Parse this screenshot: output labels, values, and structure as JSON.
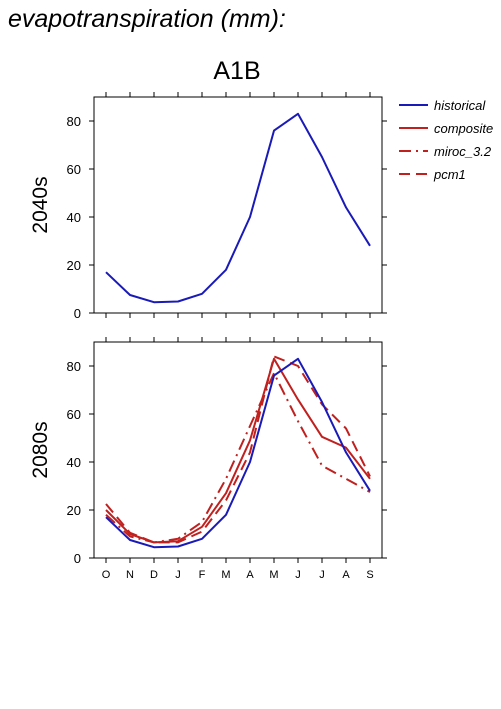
{
  "title": "evapotranspiration (mm):",
  "scenario": "A1B",
  "colors": {
    "historical": "#1a1ab8",
    "model": "#c0201e"
  },
  "legend": [
    {
      "name": "historical",
      "color": "#1a1ab8",
      "dash": "solid"
    },
    {
      "name": "composite",
      "color": "#c0201e",
      "dash": "solid"
    },
    {
      "name": "miroc_3.2",
      "color": "#c0201e",
      "dash": "dashdot"
    },
    {
      "name": "pcm1",
      "color": "#c0201e",
      "dash": "dashed"
    }
  ],
  "chart_data": [
    {
      "type": "line",
      "row_label": "2040s",
      "categories": [
        "O",
        "N",
        "D",
        "J",
        "F",
        "M",
        "A",
        "M",
        "J",
        "J",
        "A",
        "S"
      ],
      "ylim": [
        0,
        90
      ],
      "yticks": [
        0,
        20,
        40,
        60,
        80
      ],
      "show_x_labels": false,
      "series": [
        {
          "name": "historical",
          "values": [
            17,
            7.5,
            4.5,
            4.8,
            8,
            18,
            40,
            76,
            83,
            65,
            44,
            28
          ]
        }
      ]
    },
    {
      "type": "line",
      "row_label": "2080s",
      "categories": [
        "O",
        "N",
        "D",
        "J",
        "F",
        "M",
        "A",
        "M",
        "J",
        "J",
        "A",
        "S"
      ],
      "ylim": [
        0,
        90
      ],
      "yticks": [
        0,
        20,
        40,
        60,
        80
      ],
      "show_x_labels": true,
      "series": [
        {
          "name": "historical",
          "values": [
            17,
            7.5,
            4.5,
            4.8,
            8,
            18,
            40,
            76,
            83,
            65,
            44,
            28
          ]
        },
        {
          "name": "composite",
          "values": [
            20,
            10,
            6.5,
            7,
            13,
            27,
            49,
            83,
            66,
            50.5,
            46,
            33
          ]
        },
        {
          "name": "miroc_3.2",
          "values": [
            18,
            9,
            6.5,
            8,
            15,
            33,
            55,
            77,
            57,
            38.5,
            33,
            27.5
          ]
        },
        {
          "name": "pcm1",
          "values": [
            22.5,
            10.5,
            6.5,
            6.5,
            11,
            24,
            44,
            84,
            80,
            64,
            54,
            34
          ]
        }
      ]
    }
  ]
}
